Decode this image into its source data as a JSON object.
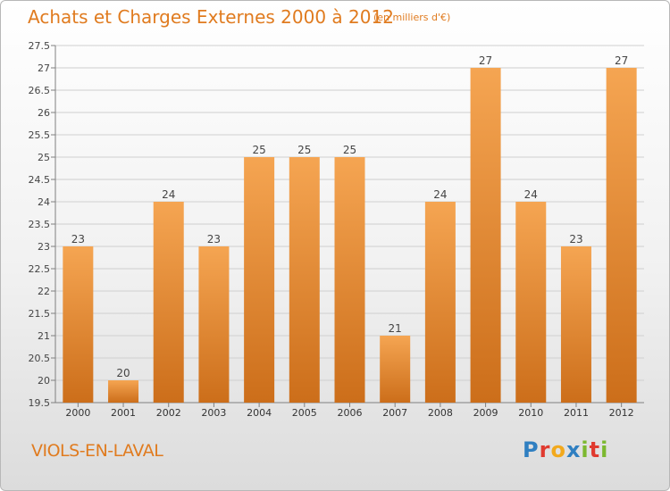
{
  "header": {
    "title": "Achats et Charges Externes 2000 à 2012",
    "subtitle": "(en milliers d'€)"
  },
  "footer": {
    "place": "VIOLS-EN-LAVAL",
    "logo_letters": [
      {
        "ch": "P",
        "color": "#2f7fc1"
      },
      {
        "ch": "r",
        "color": "#e03a2f"
      },
      {
        "ch": "o",
        "color": "#f2a91d"
      },
      {
        "ch": "x",
        "color": "#2f7fc1"
      },
      {
        "ch": "i",
        "color": "#7cb82f"
      },
      {
        "ch": "t",
        "color": "#e03a2f"
      },
      {
        "ch": "i",
        "color": "#7cb82f"
      }
    ]
  },
  "colors": {
    "accent": "#e07b1f",
    "bar_top": "#f5a552",
    "bar_bottom": "#cc6e1a",
    "grid": "#cfcfcf",
    "axis": "#7f7f7f"
  },
  "chart_data": {
    "type": "bar",
    "title": "Achats et Charges Externes 2000 à 2012",
    "subtitle": "(en milliers d'€)",
    "categories": [
      "2000",
      "2001",
      "2002",
      "2003",
      "2004",
      "2005",
      "2006",
      "2007",
      "2008",
      "2009",
      "2010",
      "2011",
      "2012"
    ],
    "values": [
      23,
      20,
      24,
      23,
      25,
      25,
      25,
      21,
      24,
      27,
      24,
      23,
      27
    ],
    "ylim": [
      19.5,
      27.5
    ],
    "yticks": [
      19.5,
      20,
      20.5,
      21,
      21.5,
      22,
      22.5,
      23,
      23.5,
      24,
      24.5,
      25,
      25.5,
      26,
      26.5,
      27,
      27.5
    ],
    "grid": true,
    "xlabel": "",
    "ylabel": ""
  }
}
